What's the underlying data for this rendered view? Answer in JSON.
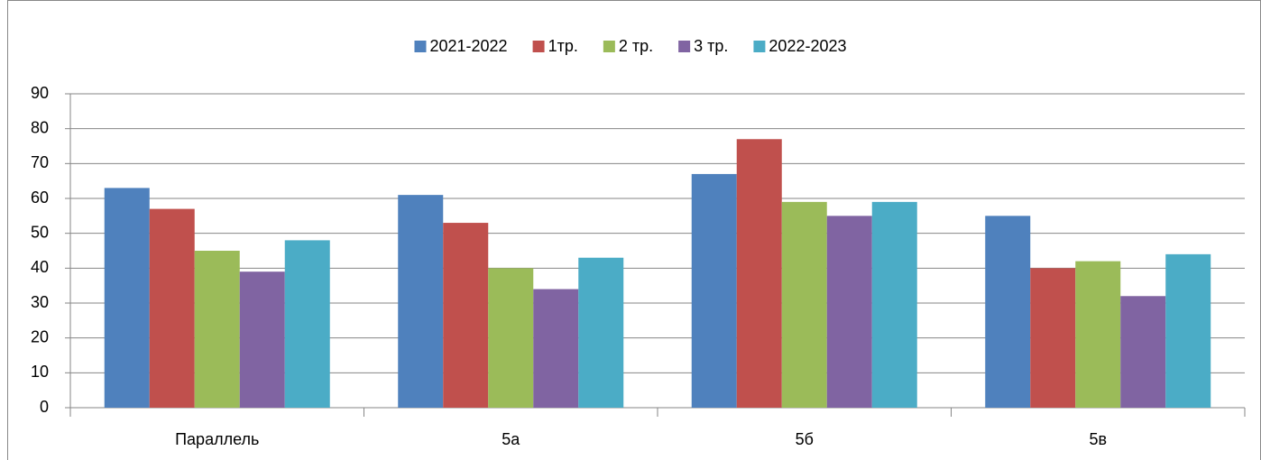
{
  "chart_data": {
    "type": "bar",
    "categories": [
      "Параллель",
      "5а",
      "5б",
      "5в"
    ],
    "series": [
      {
        "name": "2021-2022",
        "color": "#4f81bd",
        "values": [
          63,
          61,
          67,
          55
        ]
      },
      {
        "name": "1тр.",
        "color": "#c0504d",
        "values": [
          57,
          53,
          77,
          40
        ]
      },
      {
        "name": "2 тр.",
        "color": "#9bbb59",
        "values": [
          45,
          40,
          59,
          42
        ]
      },
      {
        "name": "3 тр.",
        "color": "#8064a2",
        "values": [
          39,
          34,
          55,
          32
        ]
      },
      {
        "name": "2022-2023",
        "color": "#4bacc6",
        "values": [
          48,
          43,
          59,
          44
        ]
      }
    ],
    "ylim": [
      0,
      90
    ],
    "yticks": [
      0,
      10,
      20,
      30,
      40,
      50,
      60,
      70,
      80,
      90
    ],
    "grid": true,
    "legend": "top"
  }
}
